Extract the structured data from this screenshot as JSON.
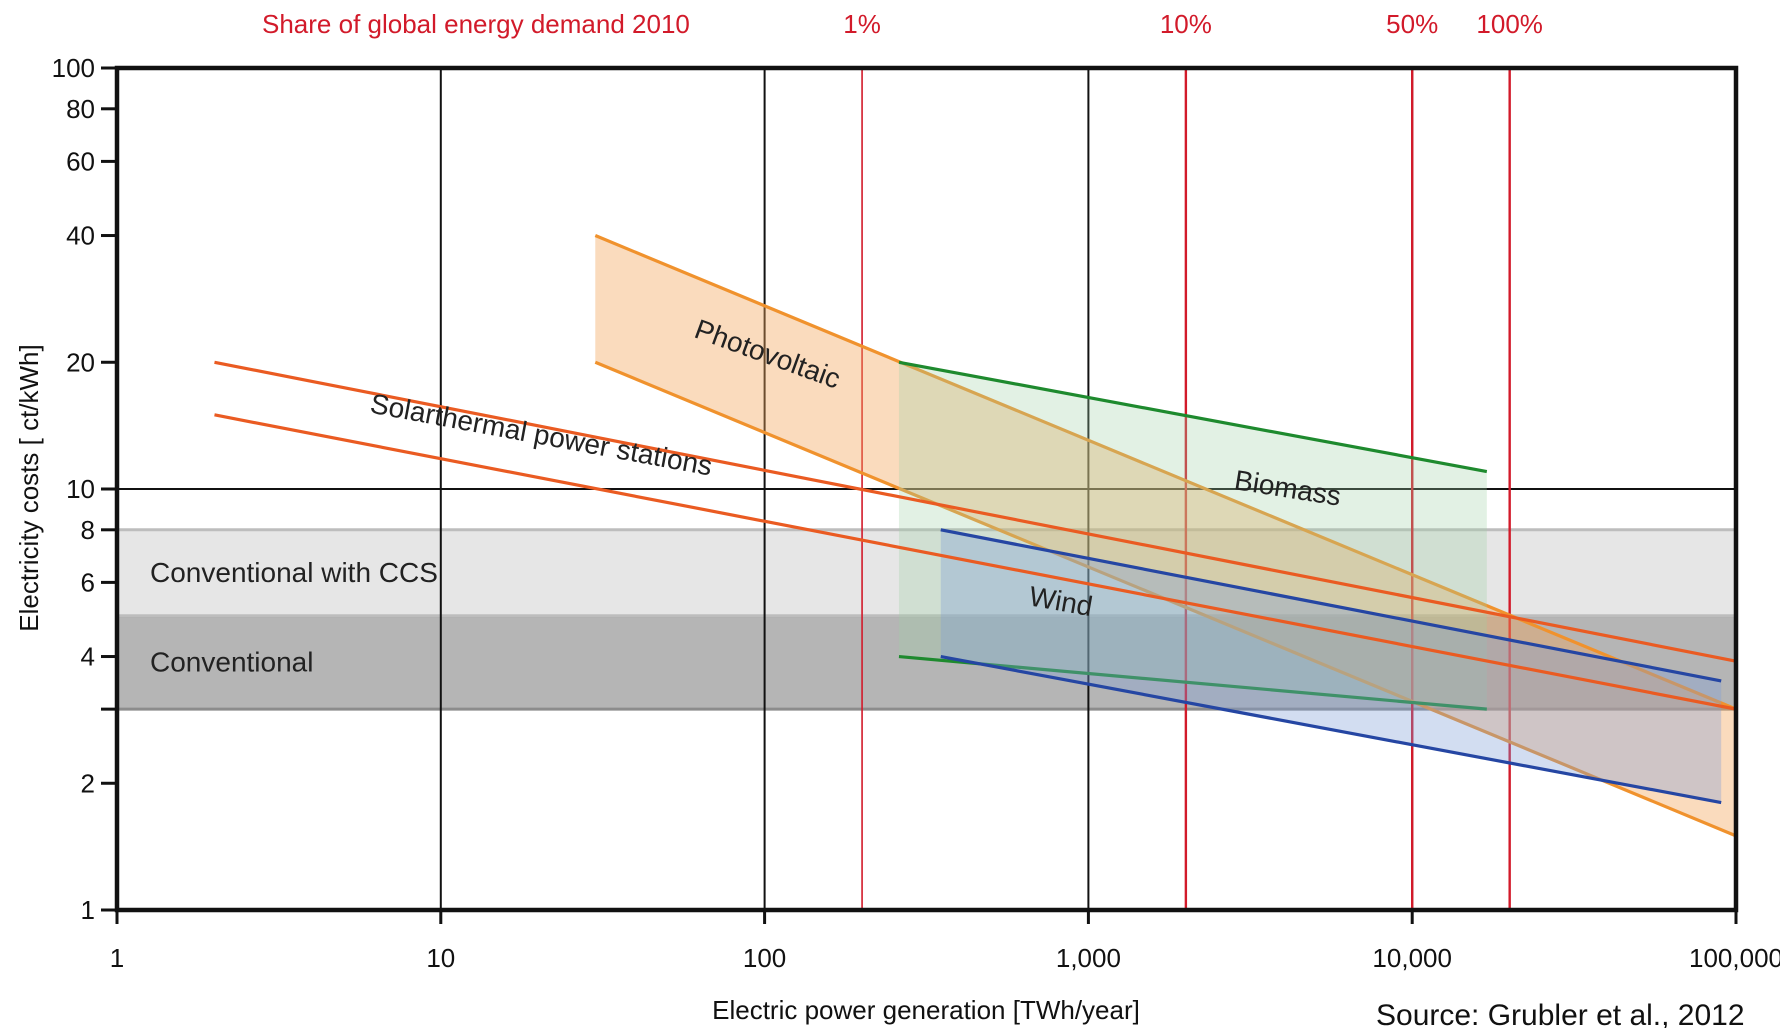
{
  "chart_data": {
    "type": "area",
    "xlabel": "Electric power generation [TWh/year]",
    "ylabel": "Electricity costs [  ct/kWh]",
    "x_scale": "log",
    "y_scale": "log",
    "xlim": [
      1,
      100000
    ],
    "ylim": [
      1,
      100
    ],
    "x_ticks": [
      {
        "value": 1,
        "label": "1"
      },
      {
        "value": 10,
        "label": "10"
      },
      {
        "value": 100,
        "label": "100"
      },
      {
        "value": 1000,
        "label": "1,000"
      },
      {
        "value": 10000,
        "label": "10,000"
      },
      {
        "value": 100000,
        "label": "100,000"
      }
    ],
    "y_ticks": [
      {
        "value": 1,
        "label": "1"
      },
      {
        "value": 2,
        "label": "2"
      },
      {
        "value": 3,
        "label": ""
      },
      {
        "value": 4,
        "label": "4"
      },
      {
        "value": 6,
        "label": "6"
      },
      {
        "value": 8,
        "label": "8"
      },
      {
        "value": 10,
        "label": "10"
      },
      {
        "value": 20,
        "label": "20"
      },
      {
        "value": 40,
        "label": "40"
      },
      {
        "value": 60,
        "label": "60"
      },
      {
        "value": 80,
        "label": "80"
      },
      {
        "value": 100,
        "label": "100"
      }
    ],
    "grid": "vertical lines at each decade, horizontal line at 10",
    "share_of_demand": {
      "title": "Share of global energy demand 2010",
      "markers": [
        {
          "label": "1%",
          "x": 200
        },
        {
          "label": "10%",
          "x": 2000
        },
        {
          "label": "50%",
          "x": 10000
        },
        {
          "label": "100%",
          "x": 20000
        }
      ],
      "color": "#d21a2a"
    },
    "bands": [
      {
        "name": "Conventional",
        "kind": "horizontal",
        "y_low": 3.0,
        "y_high": 5.0,
        "fill": "#b5b5b5",
        "edge": "#8c8c8c"
      },
      {
        "name": "Conventional with CCS",
        "kind": "horizontal",
        "y_low": 5.0,
        "y_high": 8.0,
        "fill": "#e6e6e6",
        "edge": "#bdbdbd"
      },
      {
        "name": "Photovoltaic",
        "kind": "sloped",
        "x": [
          30,
          100000
        ],
        "upper": [
          40,
          3.0
        ],
        "lower": [
          20,
          1.5
        ],
        "fill": "#f2a65a",
        "fill_opacity": 0.4,
        "edge": "#f0922d"
      },
      {
        "name": "Biomass",
        "kind": "sloped",
        "x": [
          260,
          17000
        ],
        "upper": [
          20,
          11
        ],
        "lower": [
          4.0,
          3.0
        ],
        "fill": "#9fd1a6",
        "fill_opacity": 0.3,
        "edge": "#1e8a2e"
      },
      {
        "name": "Wind",
        "kind": "sloped",
        "x": [
          350,
          90000
        ],
        "upper": [
          8.0,
          3.5
        ],
        "lower": [
          4.0,
          1.8
        ],
        "fill": "#7f9ed8",
        "fill_opacity": 0.35,
        "edge": "#2546a3"
      },
      {
        "name": "Solarthermal power stations",
        "kind": "lines",
        "x": [
          2,
          100000
        ],
        "upper": [
          20,
          3.9
        ],
        "lower": [
          15,
          3.0
        ],
        "edge": "#ea5b22"
      }
    ],
    "source": "Source: Grubler et al., 2012"
  }
}
